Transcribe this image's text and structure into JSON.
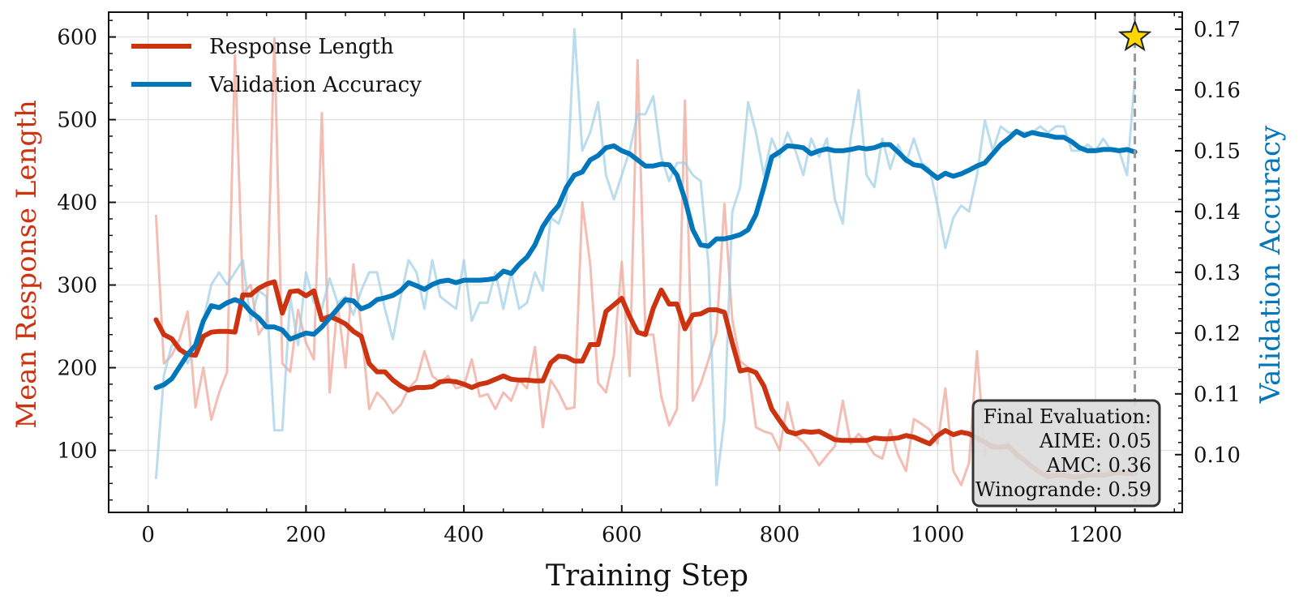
{
  "chart_data": {
    "type": "line",
    "xlabel": "Training Step",
    "ylabel_left": "Mean Response Length",
    "ylabel_right": "Validation Accuracy",
    "xlim": [
      -50,
      1310
    ],
    "ylim_left": [
      25,
      630
    ],
    "ylim_right": [
      0.0905,
      0.1728
    ],
    "xticks": [
      0,
      200,
      400,
      600,
      800,
      1000,
      1200
    ],
    "yticks_left": [
      100,
      200,
      300,
      400,
      500,
      600
    ],
    "yticks_right": [
      0.1,
      0.11,
      0.12,
      0.13,
      0.14,
      0.15,
      0.16,
      0.17
    ],
    "grid": true,
    "legend_position": "top-left",
    "colors": {
      "response": "#cc3311",
      "accuracy": "#0077bb",
      "response_raw": "#eea193",
      "accuracy_raw": "#9dcde6",
      "star": "#ffd700",
      "eval_line": "#999999"
    },
    "series": [
      {
        "name": "Response Length",
        "axis": "left",
        "x": [
          10,
          20,
          30,
          40,
          50,
          60,
          70,
          80,
          90,
          100,
          110,
          120,
          130,
          140,
          150,
          160,
          170,
          180,
          190,
          200,
          210,
          220,
          230,
          240,
          250,
          260,
          270,
          280,
          290,
          300,
          310,
          320,
          330,
          340,
          350,
          360,
          370,
          380,
          390,
          400,
          410,
          420,
          430,
          440,
          450,
          460,
          470,
          480,
          490,
          500,
          510,
          520,
          530,
          540,
          550,
          560,
          570,
          580,
          590,
          600,
          610,
          620,
          630,
          640,
          650,
          660,
          670,
          680,
          690,
          700,
          710,
          720,
          730,
          740,
          750,
          760,
          770,
          780,
          790,
          800,
          810,
          820,
          830,
          840,
          850,
          860,
          870,
          880,
          890,
          900,
          910,
          920,
          930,
          940,
          950,
          960,
          970,
          980,
          990,
          1000,
          1010,
          1020,
          1030,
          1040,
          1050,
          1060,
          1070,
          1080,
          1090,
          1100,
          1110,
          1120,
          1130,
          1140,
          1150,
          1160,
          1170,
          1180,
          1190,
          1200,
          1210,
          1220,
          1230,
          1240,
          1250
        ],
        "values": [
          258,
          240,
          235,
          222,
          216,
          215,
          238,
          243,
          244,
          244,
          243,
          288,
          288,
          296,
          301,
          304,
          266,
          292,
          293,
          287,
          293,
          258,
          262,
          258,
          253,
          244,
          238,
          205,
          195,
          195,
          185,
          178,
          173,
          176,
          176,
          177,
          183,
          184,
          183,
          180,
          176,
          180,
          182,
          186,
          190,
          186,
          185,
          185,
          184,
          184,
          206,
          214,
          213,
          208,
          208,
          228,
          228,
          268,
          276,
          284,
          262,
          243,
          240,
          272,
          294,
          277,
          277,
          247,
          264,
          265,
          270,
          270,
          267,
          230,
          196,
          198,
          194,
          178,
          150,
          136,
          123,
          120,
          123,
          122,
          123,
          118,
          113,
          112,
          112,
          112,
          112,
          115,
          114,
          114,
          115,
          118,
          116,
          112,
          108,
          118,
          124,
          119,
          122,
          120,
          115,
          110,
          104,
          104,
          105,
          95,
          88,
          80,
          73,
          68,
          70,
          70,
          68,
          68,
          70,
          70,
          70,
          72,
          73,
          72,
          72
        ]
      },
      {
        "name": "Validation Accuracy",
        "axis": "right",
        "x": [
          10,
          20,
          30,
          40,
          50,
          60,
          70,
          80,
          90,
          100,
          110,
          120,
          130,
          140,
          150,
          160,
          170,
          180,
          190,
          200,
          210,
          220,
          230,
          240,
          250,
          260,
          270,
          280,
          290,
          300,
          310,
          320,
          330,
          340,
          350,
          360,
          370,
          380,
          390,
          400,
          410,
          420,
          430,
          440,
          450,
          460,
          470,
          480,
          490,
          500,
          510,
          520,
          530,
          540,
          550,
          560,
          570,
          580,
          590,
          600,
          610,
          620,
          630,
          640,
          650,
          660,
          670,
          680,
          690,
          700,
          710,
          720,
          730,
          740,
          750,
          760,
          770,
          780,
          790,
          800,
          810,
          820,
          830,
          840,
          850,
          860,
          870,
          880,
          890,
          900,
          910,
          920,
          930,
          940,
          950,
          960,
          970,
          980,
          990,
          1000,
          1010,
          1020,
          1030,
          1040,
          1050,
          1060,
          1070,
          1080,
          1090,
          1100,
          1110,
          1120,
          1130,
          1140,
          1150,
          1160,
          1170,
          1180,
          1190,
          1200,
          1210,
          1220,
          1230,
          1240,
          1250
        ],
        "values": [
          0.111,
          0.1115,
          0.1125,
          0.1145,
          0.1165,
          0.118,
          0.122,
          0.1245,
          0.1242,
          0.125,
          0.1255,
          0.125,
          0.1235,
          0.1225,
          0.121,
          0.121,
          0.1205,
          0.119,
          0.1195,
          0.12,
          0.1198,
          0.121,
          0.1225,
          0.124,
          0.1255,
          0.1253,
          0.124,
          0.1245,
          0.1255,
          0.1258,
          0.1262,
          0.127,
          0.1283,
          0.1278,
          0.1272,
          0.128,
          0.1285,
          0.1287,
          0.1283,
          0.1287,
          0.1287,
          0.1287,
          0.1288,
          0.129,
          0.1302,
          0.1298,
          0.1313,
          0.1325,
          0.1345,
          0.1375,
          0.1395,
          0.141,
          0.144,
          0.146,
          0.1465,
          0.1485,
          0.1492,
          0.1505,
          0.1508,
          0.15,
          0.1495,
          0.1485,
          0.1475,
          0.1475,
          0.1478,
          0.1477,
          0.146,
          0.142,
          0.137,
          0.1345,
          0.1343,
          0.1355,
          0.1355,
          0.1358,
          0.1362,
          0.137,
          0.1395,
          0.144,
          0.149,
          0.1498,
          0.1508,
          0.1507,
          0.1505,
          0.1495,
          0.15,
          0.1503,
          0.15,
          0.15,
          0.1502,
          0.1505,
          0.1503,
          0.1505,
          0.151,
          0.151,
          0.1498,
          0.1485,
          0.1477,
          0.1475,
          0.1465,
          0.1455,
          0.1463,
          0.1458,
          0.1462,
          0.1468,
          0.1475,
          0.148,
          0.1495,
          0.151,
          0.152,
          0.1532,
          0.1525,
          0.153,
          0.1527,
          0.1525,
          0.1522,
          0.1522,
          0.1515,
          0.1505,
          0.15,
          0.15,
          0.1502,
          0.1502,
          0.15,
          0.1502,
          0.1498
        ]
      }
    ],
    "raw_series": [
      {
        "axis": "left",
        "x": [
          10,
          20,
          30,
          40,
          50,
          60,
          70,
          80,
          90,
          100,
          110,
          120,
          130,
          140,
          150,
          160,
          170,
          180,
          190,
          200,
          210,
          220,
          230,
          240,
          250,
          260,
          270,
          280,
          290,
          300,
          310,
          320,
          330,
          340,
          350,
          360,
          370,
          380,
          390,
          400,
          410,
          420,
          430,
          440,
          450,
          460,
          470,
          480,
          490,
          500,
          510,
          520,
          530,
          540,
          550,
          560,
          570,
          580,
          590,
          600,
          610,
          620,
          630,
          640,
          650,
          660,
          670,
          680,
          690,
          700,
          710,
          720,
          730,
          740,
          750,
          760,
          770,
          780,
          790,
          800,
          810,
          820,
          830,
          840,
          850,
          860,
          870,
          880,
          890,
          900,
          910,
          920,
          930,
          940,
          950,
          960,
          970,
          980,
          990,
          1000,
          1010,
          1020,
          1030,
          1040,
          1050,
          1060,
          1070,
          1080,
          1090,
          1100,
          1110,
          1120,
          1130,
          1140,
          1150,
          1160,
          1170,
          1180,
          1190,
          1200,
          1210,
          1220,
          1230,
          1240,
          1250
        ],
        "values": [
          385,
          205,
          215,
          235,
          268,
          152,
          200,
          137,
          170,
          195,
          578,
          290,
          300,
          240,
          255,
          598,
          205,
          195,
          270,
          230,
          210,
          508,
          170,
          278,
          200,
          325,
          250,
          150,
          170,
          160,
          145,
          155,
          175,
          185,
          220,
          190,
          182,
          190,
          175,
          178,
          210,
          165,
          168,
          150,
          170,
          160,
          185,
          175,
          225,
          128,
          185,
          170,
          150,
          152,
          400,
          325,
          182,
          170,
          215,
          328,
          190,
          572,
          240,
          240,
          165,
          130,
          150,
          523,
          160,
          180,
          210,
          242,
          398,
          258,
          208,
          200,
          128,
          123,
          120,
          100,
          158,
          118,
          110,
          98,
          82,
          94,
          105,
          160,
          108,
          120,
          110,
          95,
          90,
          125,
          95,
          75,
          138,
          132,
          125,
          108,
          175,
          75,
          58,
          85,
          220,
          95,
          108,
          105,
          110,
          90,
          88,
          82,
          70,
          74,
          70,
          68,
          80,
          70,
          68,
          85,
          72,
          78,
          73,
          72,
          74
        ]
      },
      {
        "axis": "right",
        "x": [
          10,
          20,
          30,
          40,
          50,
          60,
          70,
          80,
          90,
          100,
          110,
          120,
          130,
          140,
          150,
          160,
          170,
          180,
          190,
          200,
          210,
          220,
          230,
          240,
          250,
          260,
          270,
          280,
          290,
          300,
          310,
          320,
          330,
          340,
          350,
          360,
          370,
          380,
          390,
          400,
          410,
          420,
          430,
          440,
          450,
          460,
          470,
          480,
          490,
          500,
          510,
          520,
          530,
          540,
          550,
          560,
          570,
          580,
          590,
          600,
          610,
          620,
          630,
          640,
          650,
          660,
          670,
          680,
          690,
          700,
          710,
          720,
          730,
          740,
          750,
          760,
          770,
          780,
          790,
          800,
          810,
          820,
          830,
          840,
          850,
          860,
          870,
          880,
          890,
          900,
          910,
          920,
          930,
          940,
          950,
          960,
          970,
          980,
          990,
          1000,
          1010,
          1020,
          1030,
          1040,
          1050,
          1060,
          1070,
          1080,
          1090,
          1100,
          1110,
          1120,
          1130,
          1140,
          1150,
          1160,
          1170,
          1180,
          1190,
          1200,
          1210,
          1220,
          1230,
          1240,
          1250
        ],
        "values": [
          0.096,
          0.113,
          0.118,
          0.118,
          0.115,
          0.118,
          0.122,
          0.128,
          0.13,
          0.128,
          0.13,
          0.132,
          0.122,
          0.127,
          0.126,
          0.104,
          0.104,
          0.126,
          0.118,
          0.13,
          0.125,
          0.124,
          0.129,
          0.125,
          0.126,
          0.123,
          0.127,
          0.13,
          0.13,
          0.124,
          0.119,
          0.126,
          0.132,
          0.13,
          0.124,
          0.132,
          0.126,
          0.125,
          0.124,
          0.132,
          0.122,
          0.125,
          0.125,
          0.13,
          0.124,
          0.13,
          0.124,
          0.125,
          0.13,
          0.127,
          0.139,
          0.138,
          0.142,
          0.17,
          0.15,
          0.153,
          0.158,
          0.146,
          0.142,
          0.146,
          0.15,
          0.156,
          0.156,
          0.159,
          0.149,
          0.145,
          0.148,
          0.148,
          0.146,
          0.145,
          0.131,
          0.095,
          0.106,
          0.14,
          0.144,
          0.158,
          0.153,
          0.146,
          0.152,
          0.149,
          0.153,
          0.15,
          0.146,
          0.152,
          0.149,
          0.152,
          0.142,
          0.138,
          0.152,
          0.16,
          0.146,
          0.144,
          0.152,
          0.147,
          0.151,
          0.148,
          0.152,
          0.148,
          0.147,
          0.141,
          0.134,
          0.139,
          0.141,
          0.14,
          0.146,
          0.155,
          0.15,
          0.154,
          0.153,
          0.153,
          0.153,
          0.153,
          0.154,
          0.153,
          0.154,
          0.154,
          0.15,
          0.15,
          0.151,
          0.15,
          0.152,
          0.15,
          0.15,
          0.146,
          0.162
        ]
      }
    ],
    "annotation_box": {
      "lines": [
        "Final Evaluation:",
        "AIME: 0.05",
        "AMC: 0.36",
        "Winogrande: 0.59"
      ]
    },
    "marker": {
      "type": "star",
      "x": 1250,
      "y_left": 600
    },
    "vline_x": 1250
  }
}
